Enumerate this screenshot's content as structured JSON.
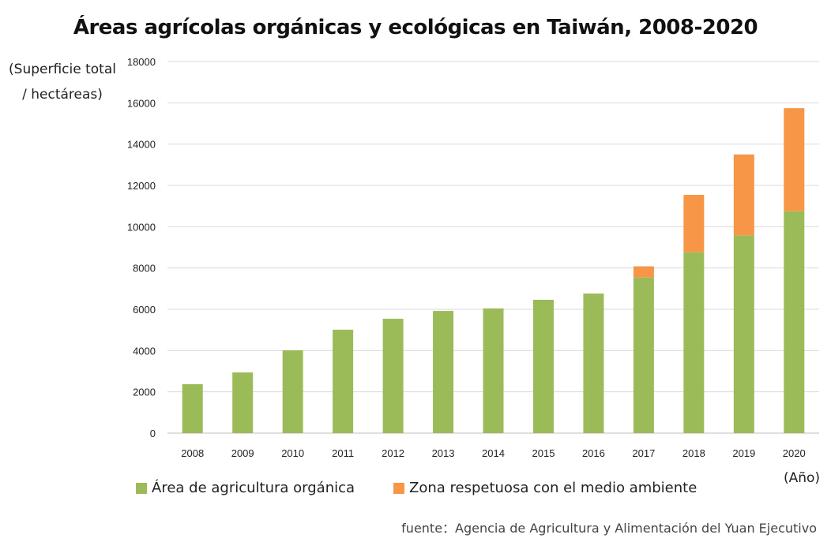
{
  "chart_data": {
    "type": "bar",
    "stacked": true,
    "title": "Áreas agrícolas orgánicas y ecológicas en Taiwán, 2008-2020",
    "ylabel": "(Superficie total / hectáreas)",
    "xlabel": "(Año)",
    "ylim": [
      0,
      18000
    ],
    "yticks": [
      0,
      2000,
      4000,
      6000,
      8000,
      10000,
      12000,
      14000,
      16000,
      18000
    ],
    "grid": true,
    "legend": "bottom",
    "categories": [
      "2008",
      "2009",
      "2010",
      "2011",
      "2012",
      "2013",
      "2014",
      "2015",
      "2016",
      "2017",
      "2018",
      "2019",
      "2020"
    ],
    "series": [
      {
        "name": "Área de agricultura orgánica",
        "color": "#9bbb59",
        "values": [
          2370,
          2940,
          4010,
          5010,
          5540,
          5920,
          6040,
          6460,
          6760,
          7540,
          8760,
          9580,
          10750
        ]
      },
      {
        "name": "Zona respetuosa con el medio ambiente",
        "color": "#f79646",
        "values": [
          0,
          0,
          0,
          0,
          0,
          0,
          0,
          0,
          0,
          540,
          2780,
          3920,
          4990
        ]
      }
    ],
    "source": "fuente：Agencia de Agricultura y Alimentación del Yuan Ejecutivo"
  }
}
